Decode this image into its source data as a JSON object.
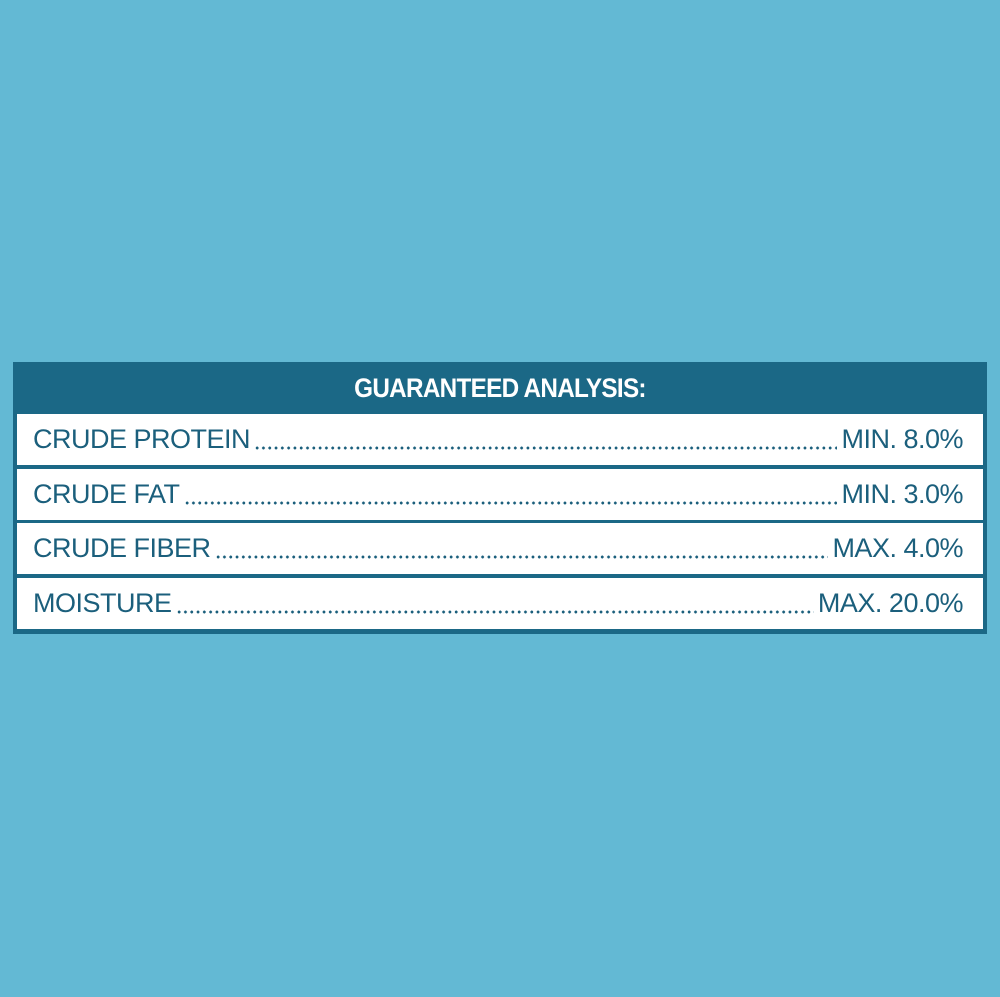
{
  "header": {
    "title": "GUARANTEED ANALYSIS:"
  },
  "table": {
    "rows": [
      [
        "CRUDE PROTEIN",
        "MIN. 8.0%"
      ],
      [
        "CRUDE FAT",
        "MIN. 3.0%"
      ],
      [
        "CRUDE FIBER",
        "MAX. 4.0%"
      ],
      [
        "MOISTURE",
        "MAX. 20.0%"
      ]
    ]
  }
}
